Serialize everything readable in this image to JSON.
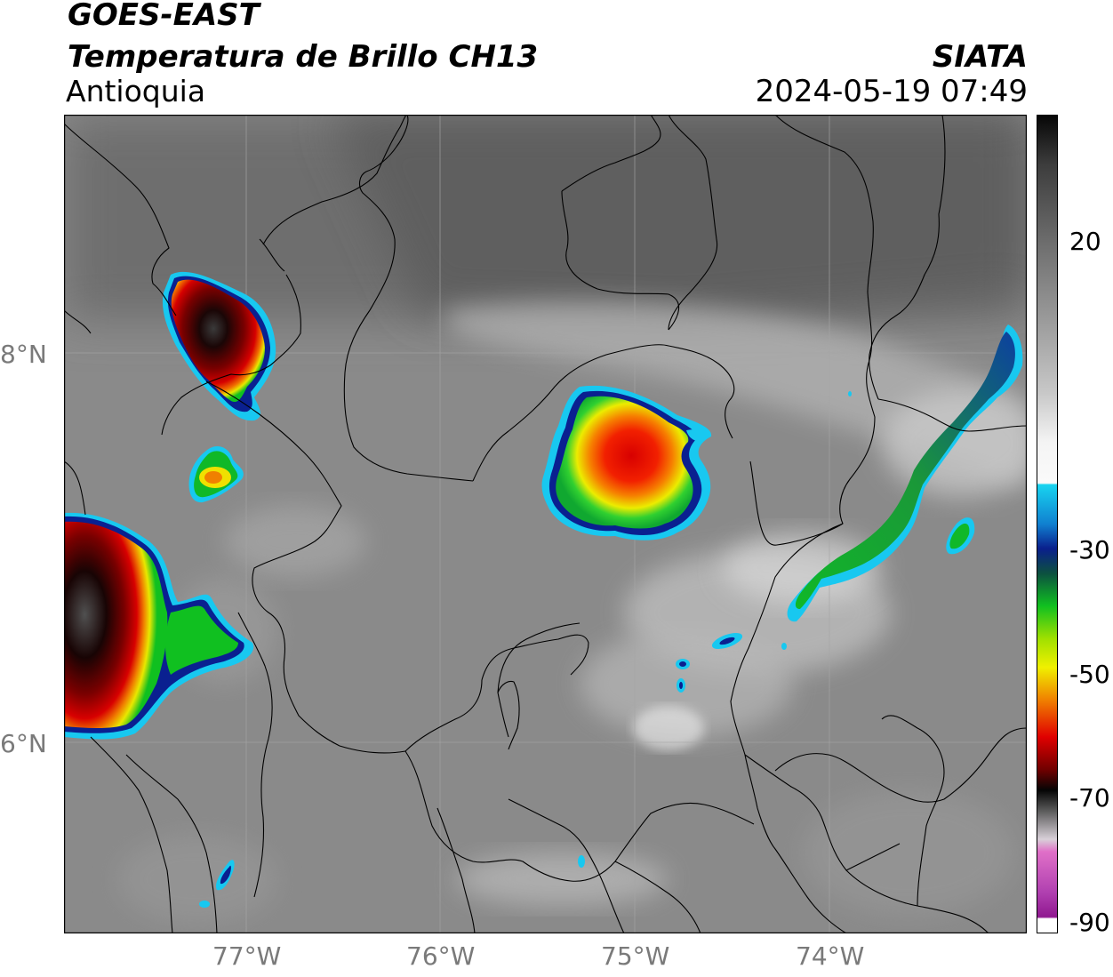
{
  "header": {
    "title_line1": "GOES-EAST",
    "title_line2": "Temperatura de Brillo CH13",
    "region": "Antioquia",
    "organization": "SIATA",
    "datetime": "2024-05-19 07:49"
  },
  "axes": {
    "lat_labels": [
      "8°N",
      "6°N"
    ],
    "lon_labels": [
      "77°W",
      "76°W",
      "75°W",
      "74°W"
    ]
  },
  "colorbar": {
    "tick_labels": [
      "20",
      "-30",
      "-50",
      "-70",
      "-90"
    ],
    "colors": {
      "warm_gray": "#8c8c8c",
      "white": "#f4f4f4",
      "cyan": "#18d4f0",
      "blue": "#0a1f8c",
      "green": "#10c020",
      "yellow": "#f0f000",
      "orange": "#f08000",
      "red": "#e00000",
      "dark_red": "#700000",
      "black": "#050505",
      "pink": "#e060c0",
      "purple": "#901890"
    }
  }
}
